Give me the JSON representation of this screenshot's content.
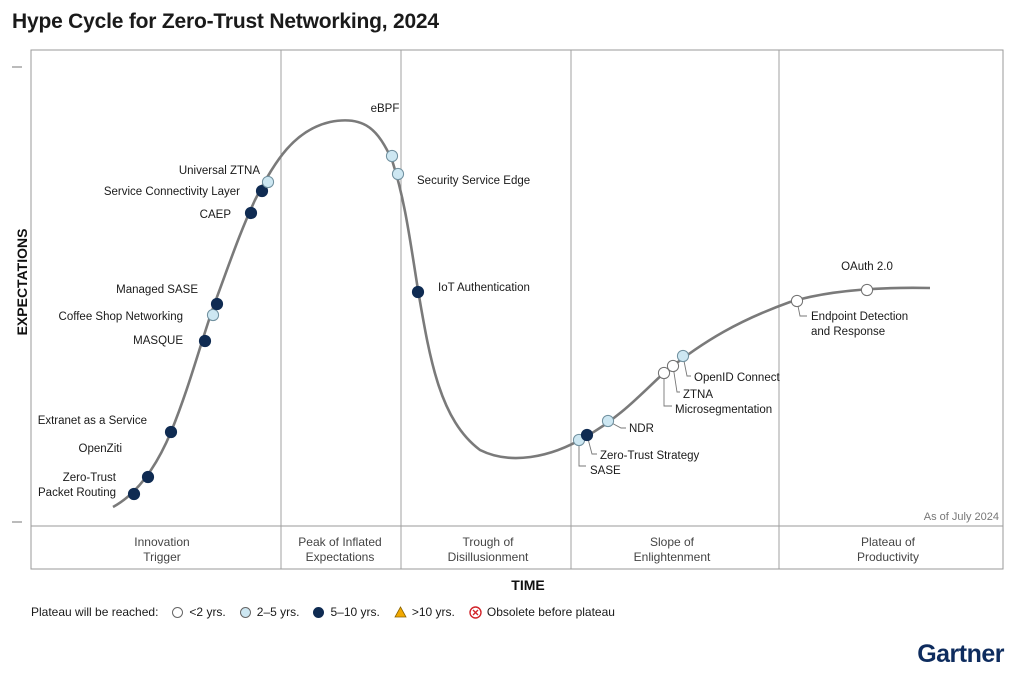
{
  "title": "Hype Cycle for Zero-Trust Networking, 2024",
  "brand": "Gartner",
  "colors": {
    "lt2": "#ffffff",
    "y2to5": "#cde7f2",
    "y5to10": "#0f2b52",
    "gt10": "#f2a900",
    "obsolete": "#d2242a",
    "curve": "#7a7a7a"
  },
  "chart_data": {
    "type": "hype-cycle",
    "xlabel": "TIME",
    "ylabel": "EXPECTATIONS",
    "as_of": "As of July 2024",
    "phases": [
      [
        "Innovation",
        "Trigger"
      ],
      [
        "Peak of Inflated",
        "Expectations"
      ],
      [
        "Trough of",
        "Disillusionment"
      ],
      [
        "Slope of",
        "Enlightenment"
      ],
      [
        "Plateau of",
        "Productivity"
      ]
    ],
    "technologies": [
      {
        "name": [
          "Zero-Trust",
          "Packet Routing"
        ],
        "plateau": "5-10"
      },
      {
        "name": [
          "OpenZiti"
        ],
        "plateau": "5-10"
      },
      {
        "name": [
          "Extranet as a Service"
        ],
        "plateau": "5-10"
      },
      {
        "name": [
          "MASQUE"
        ],
        "plateau": "5-10"
      },
      {
        "name": [
          "Coffee Shop Networking"
        ],
        "plateau": "2-5"
      },
      {
        "name": [
          "Managed SASE"
        ],
        "plateau": "5-10"
      },
      {
        "name": [
          "CAEP"
        ],
        "plateau": "5-10"
      },
      {
        "name": [
          "Service Connectivity Layer"
        ],
        "plateau": "5-10"
      },
      {
        "name": [
          "Universal ZTNA"
        ],
        "plateau": "2-5"
      },
      {
        "name": [
          "eBPF"
        ],
        "plateau": "2-5"
      },
      {
        "name": [
          "Security Service Edge"
        ],
        "plateau": "2-5"
      },
      {
        "name": [
          "IoT Authentication"
        ],
        "plateau": "5-10"
      },
      {
        "name": [
          "SASE"
        ],
        "plateau": "2-5"
      },
      {
        "name": [
          "Zero-Trust Strategy"
        ],
        "plateau": "5-10"
      },
      {
        "name": [
          "NDR"
        ],
        "plateau": "2-5"
      },
      {
        "name": [
          "Microsegmentation"
        ],
        "plateau": "<2"
      },
      {
        "name": [
          "ZTNA"
        ],
        "plateau": "<2"
      },
      {
        "name": [
          "OpenID Connect"
        ],
        "plateau": "2-5"
      },
      {
        "name": [
          "Endpoint Detection",
          "and Response"
        ],
        "plateau": "<2"
      },
      {
        "name": [
          "OAuth 2.0"
        ],
        "plateau": "<2"
      }
    ]
  },
  "legend": {
    "title": "Plateau will be reached:",
    "items": [
      {
        "label": "<2 yrs.",
        "symbol": "circle-white"
      },
      {
        "label": "2–5 yrs.",
        "symbol": "circle-light"
      },
      {
        "label": "5–10 yrs.",
        "symbol": "circle-dark"
      },
      {
        "label": ">10 yrs.",
        "symbol": "triangle"
      },
      {
        "label": "Obsolete before plateau",
        "symbol": "x-circle"
      }
    ]
  }
}
